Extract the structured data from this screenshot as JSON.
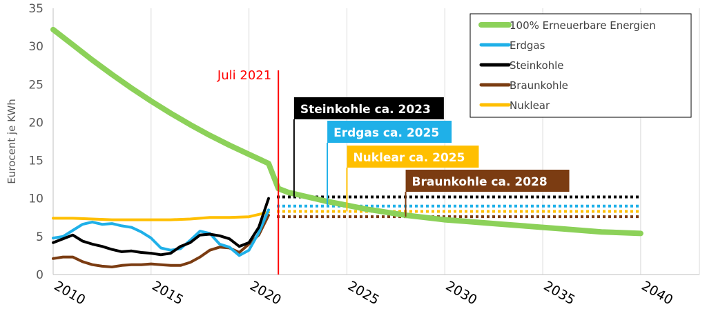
{
  "chart_data": {
    "type": "line",
    "ylabel": "Eurocent je KWh",
    "xlim": [
      2010,
      2043
    ],
    "ylim": [
      0,
      35
    ],
    "y_ticks": [
      "0",
      "5",
      "10",
      "15",
      "20",
      "25",
      "30",
      "35"
    ],
    "x_ticks": [
      "2010",
      "2015",
      "2020",
      "2025",
      "2030",
      "2035",
      "2040"
    ],
    "grid": "vertical",
    "legend_position": "top-right",
    "series": [
      {
        "name": "100% Erneuerbare Energien",
        "color": "#8cd159",
        "points": [
          [
            2010,
            32.2
          ],
          [
            2011,
            30.2
          ],
          [
            2012,
            28.2
          ],
          [
            2013,
            26.3
          ],
          [
            2014,
            24.5
          ],
          [
            2015,
            22.8
          ],
          [
            2016,
            21.2
          ],
          [
            2017,
            19.7
          ],
          [
            2018,
            18.3
          ],
          [
            2019,
            17.0
          ],
          [
            2020,
            15.8
          ],
          [
            2021,
            14.6
          ],
          [
            2021.5,
            11.3
          ],
          [
            2022,
            10.8
          ],
          [
            2023,
            10.2
          ],
          [
            2024,
            9.6
          ],
          [
            2025,
            9.1
          ],
          [
            2026,
            8.6
          ],
          [
            2027,
            8.2
          ],
          [
            2028,
            7.8
          ],
          [
            2029,
            7.5
          ],
          [
            2030,
            7.2
          ],
          [
            2031,
            7.0
          ],
          [
            2032,
            6.8
          ],
          [
            2033,
            6.6
          ],
          [
            2034,
            6.4
          ],
          [
            2035,
            6.2
          ],
          [
            2036,
            6.0
          ],
          [
            2037,
            5.8
          ],
          [
            2038,
            5.6
          ],
          [
            2039,
            5.5
          ],
          [
            2040,
            5.4
          ]
        ]
      },
      {
        "name": "Erdgas",
        "color": "#1fb0e8",
        "points": [
          [
            2010,
            4.8
          ],
          [
            2010.5,
            5.0
          ],
          [
            2011,
            5.8
          ],
          [
            2011.5,
            6.6
          ],
          [
            2012,
            6.9
          ],
          [
            2012.5,
            6.6
          ],
          [
            2013,
            6.7
          ],
          [
            2013.5,
            6.4
          ],
          [
            2014,
            6.2
          ],
          [
            2014.5,
            5.6
          ],
          [
            2015,
            4.8
          ],
          [
            2015.5,
            3.5
          ],
          [
            2016,
            3.2
          ],
          [
            2016.5,
            3.4
          ],
          [
            2017,
            4.5
          ],
          [
            2017.5,
            5.7
          ],
          [
            2018,
            5.4
          ],
          [
            2018.5,
            4.0
          ],
          [
            2019,
            3.6
          ],
          [
            2019.5,
            2.5
          ],
          [
            2020,
            3.2
          ],
          [
            2020.5,
            5.5
          ],
          [
            2021,
            8.5
          ]
        ]
      },
      {
        "name": "Steinkohle",
        "color": "#000000",
        "points": [
          [
            2010,
            4.2
          ],
          [
            2010.5,
            4.7
          ],
          [
            2011,
            5.2
          ],
          [
            2011.5,
            4.4
          ],
          [
            2012,
            4.0
          ],
          [
            2012.5,
            3.7
          ],
          [
            2013,
            3.3
          ],
          [
            2013.5,
            3.0
          ],
          [
            2014,
            3.1
          ],
          [
            2014.5,
            2.9
          ],
          [
            2015,
            2.8
          ],
          [
            2015.5,
            2.6
          ],
          [
            2016,
            2.8
          ],
          [
            2016.5,
            3.7
          ],
          [
            2017,
            4.2
          ],
          [
            2017.5,
            5.2
          ],
          [
            2018,
            5.3
          ],
          [
            2018.5,
            5.1
          ],
          [
            2019,
            4.7
          ],
          [
            2019.5,
            3.7
          ],
          [
            2020,
            4.2
          ],
          [
            2020.5,
            6.2
          ],
          [
            2021,
            10.0
          ]
        ]
      },
      {
        "name": "Braunkohle",
        "color": "#7b3c12",
        "points": [
          [
            2010,
            2.1
          ],
          [
            2010.5,
            2.3
          ],
          [
            2011,
            2.3
          ],
          [
            2011.5,
            1.7
          ],
          [
            2012,
            1.3
          ],
          [
            2012.5,
            1.1
          ],
          [
            2013,
            1.0
          ],
          [
            2013.5,
            1.2
          ],
          [
            2014,
            1.3
          ],
          [
            2014.5,
            1.3
          ],
          [
            2015,
            1.4
          ],
          [
            2015.5,
            1.3
          ],
          [
            2016,
            1.2
          ],
          [
            2016.5,
            1.2
          ],
          [
            2017,
            1.6
          ],
          [
            2017.5,
            2.3
          ],
          [
            2018,
            3.2
          ],
          [
            2018.5,
            3.6
          ],
          [
            2019,
            3.5
          ],
          [
            2019.5,
            2.9
          ],
          [
            2020,
            4.0
          ],
          [
            2020.5,
            5.2
          ],
          [
            2021,
            7.8
          ]
        ]
      },
      {
        "name": "Nuklear",
        "color": "#ffbf00",
        "points": [
          [
            2010,
            7.4
          ],
          [
            2011,
            7.4
          ],
          [
            2012,
            7.3
          ],
          [
            2013,
            7.2
          ],
          [
            2014,
            7.2
          ],
          [
            2015,
            7.2
          ],
          [
            2016,
            7.2
          ],
          [
            2017,
            7.3
          ],
          [
            2018,
            7.5
          ],
          [
            2019,
            7.5
          ],
          [
            2020,
            7.6
          ],
          [
            2021,
            8.2
          ]
        ]
      }
    ],
    "projections": [
      {
        "series": "Steinkohle",
        "value": 10.2,
        "from": 2021,
        "to": 2040
      },
      {
        "series": "Erdgas",
        "value": 9.0,
        "from": 2021,
        "to": 2040
      },
      {
        "series": "Nuklear",
        "value": 8.3,
        "from": 2021,
        "to": 2040
      },
      {
        "series": "Braunkohle",
        "value": 7.6,
        "from": 2021,
        "to": 2040
      }
    ],
    "marker": {
      "label": "Juli 2021",
      "x": 2021.5,
      "color": "#ff0000"
    },
    "annotations": [
      {
        "text": "Steinkohle ca. 2023",
        "x": 2022.3,
        "bg": "#000000"
      },
      {
        "text": "Erdgas ca. 2025",
        "x": 2024.0,
        "bg": "#1fb0e8"
      },
      {
        "text": "Nuklear ca. 2025",
        "x": 2025.0,
        "bg": "#ffbf00"
      },
      {
        "text": "Braunkohle ca. 2028",
        "x": 2028.0,
        "bg": "#7b3c12"
      }
    ]
  }
}
